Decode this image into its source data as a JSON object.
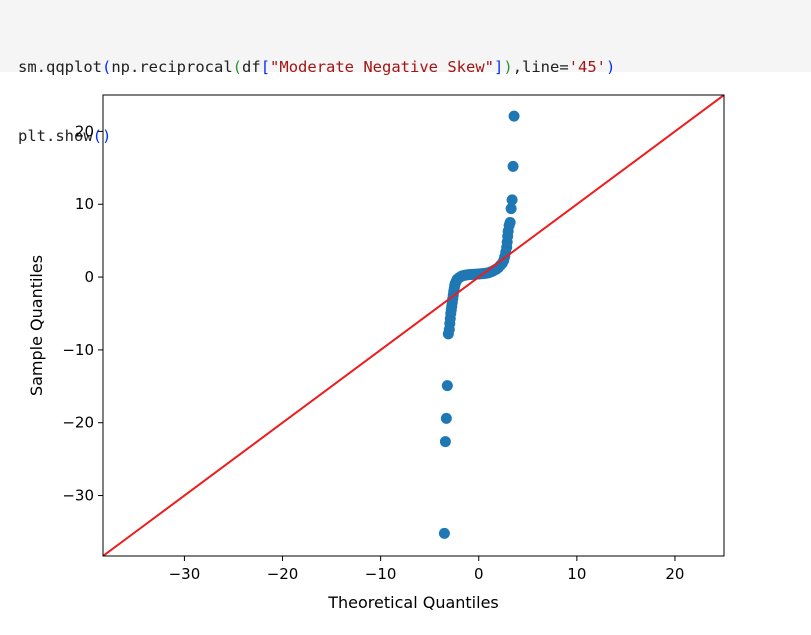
{
  "code": {
    "lines": [
      [
        {
          "t": "sm.qqplot",
          "k": "text"
        },
        {
          "t": "(",
          "k": "paren"
        },
        {
          "t": "np.reciprocal",
          "k": "text"
        },
        {
          "t": "(",
          "k": "bracket"
        },
        {
          "t": "df",
          "k": "text"
        },
        {
          "t": "[",
          "k": "paren"
        },
        {
          "t": "\"Moderate Negative Skew\"",
          "k": "str"
        },
        {
          "t": "]",
          "k": "paren"
        },
        {
          "t": ")",
          "k": "bracket"
        },
        {
          "t": ",line=",
          "k": "text"
        },
        {
          "t": "'45'",
          "k": "str"
        },
        {
          "t": ")",
          "k": "paren"
        }
      ],
      [
        {
          "t": "plt.show",
          "k": "text"
        },
        {
          "t": "()",
          "k": "paren"
        }
      ]
    ]
  },
  "colors": {
    "points": "#1f77b4",
    "reference_line": "#ee1c1c",
    "code_background": "#f5f5f5"
  },
  "chart_data": {
    "type": "scatter",
    "title": "",
    "xlabel": "Theoretical Quantiles",
    "ylabel": "Sample Quantiles",
    "xlim": [
      -38.3,
      25.0
    ],
    "ylim": [
      -38.3,
      25.0
    ],
    "xticks": [
      -30,
      -20,
      -10,
      0,
      10,
      20
    ],
    "yticks": [
      -30,
      -20,
      -10,
      0,
      10,
      20
    ],
    "xtick_labels": [
      "−30",
      "−20",
      "−10",
      "0",
      "10",
      "20"
    ],
    "ytick_labels": [
      "−30",
      "−20",
      "−10",
      "0",
      "10",
      "20"
    ],
    "reference_line": "45-degree line y = x",
    "grid": false,
    "legend": "none",
    "points": [
      {
        "x": -3.5,
        "y": -35.2
      },
      {
        "x": -3.4,
        "y": -22.6
      },
      {
        "x": -3.3,
        "y": -19.4
      },
      {
        "x": -3.2,
        "y": -14.9
      },
      {
        "x": -3.1,
        "y": -7.8
      },
      {
        "x": -3.0,
        "y": -7.2
      },
      {
        "x": -2.95,
        "y": -6.4
      },
      {
        "x": -2.9,
        "y": -5.7
      },
      {
        "x": -2.85,
        "y": -5.0
      },
      {
        "x": -2.8,
        "y": -4.5
      },
      {
        "x": -2.75,
        "y": -4.0
      },
      {
        "x": -2.7,
        "y": -3.5
      },
      {
        "x": -2.65,
        "y": -3.0
      },
      {
        "x": -2.6,
        "y": -2.5
      },
      {
        "x": -2.55,
        "y": -2.0
      },
      {
        "x": -2.5,
        "y": -1.6
      },
      {
        "x": -2.45,
        "y": -1.2
      },
      {
        "x": -2.4,
        "y": -0.9
      },
      {
        "x": -2.3,
        "y": -0.6
      },
      {
        "x": -2.2,
        "y": -0.3
      },
      {
        "x": -2.0,
        "y": -0.1
      },
      {
        "x": -1.8,
        "y": 0.1
      },
      {
        "x": -1.6,
        "y": 0.2
      },
      {
        "x": -1.4,
        "y": 0.25
      },
      {
        "x": -1.2,
        "y": 0.3
      },
      {
        "x": -1.0,
        "y": 0.33
      },
      {
        "x": -0.8,
        "y": 0.35
      },
      {
        "x": -0.6,
        "y": 0.37
      },
      {
        "x": -0.4,
        "y": 0.39
      },
      {
        "x": -0.2,
        "y": 0.41
      },
      {
        "x": 0.0,
        "y": 0.43
      },
      {
        "x": 0.2,
        "y": 0.45
      },
      {
        "x": 0.4,
        "y": 0.47
      },
      {
        "x": 0.6,
        "y": 0.5
      },
      {
        "x": 0.8,
        "y": 0.55
      },
      {
        "x": 1.0,
        "y": 0.6
      },
      {
        "x": 1.2,
        "y": 0.7
      },
      {
        "x": 1.4,
        "y": 0.8
      },
      {
        "x": 1.6,
        "y": 0.95
      },
      {
        "x": 1.8,
        "y": 1.1
      },
      {
        "x": 2.0,
        "y": 1.3
      },
      {
        "x": 2.2,
        "y": 1.6
      },
      {
        "x": 2.4,
        "y": 1.9
      },
      {
        "x": 2.55,
        "y": 2.3
      },
      {
        "x": 2.65,
        "y": 2.8
      },
      {
        "x": 2.75,
        "y": 3.4
      },
      {
        "x": 2.85,
        "y": 4.1
      },
      {
        "x": 2.9,
        "y": 4.8
      },
      {
        "x": 2.95,
        "y": 5.6
      },
      {
        "x": 3.0,
        "y": 6.3
      },
      {
        "x": 3.1,
        "y": 7.1
      },
      {
        "x": 3.2,
        "y": 7.5
      },
      {
        "x": 3.3,
        "y": 9.4
      },
      {
        "x": 3.4,
        "y": 10.6
      },
      {
        "x": 3.5,
        "y": 15.2
      },
      {
        "x": 3.6,
        "y": 22.1
      }
    ]
  }
}
